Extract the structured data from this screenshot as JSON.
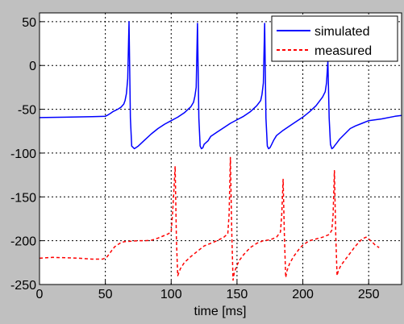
{
  "chart_data": {
    "type": "line",
    "title": "",
    "xlabel": "time [ms]",
    "ylabel": "",
    "xlim": [
      0,
      275
    ],
    "ylim": [
      -250,
      60
    ],
    "xticks": [
      0,
      50,
      100,
      150,
      200,
      250
    ],
    "yticks": [
      50,
      0,
      -50,
      -100,
      -150,
      -200,
      -250
    ],
    "grid": true,
    "legend_position": "top-right",
    "colors": {
      "figure_bg": "#c0c0c0",
      "axes_bg": "#ffffff",
      "grid": "#000000"
    },
    "series": [
      {
        "name": "simulated",
        "color": "#0000ff",
        "dash": "solid",
        "x": [
          0,
          20,
          40,
          50,
          52,
          54,
          56,
          58,
          60,
          62,
          64,
          65,
          66,
          67,
          68,
          69,
          70,
          72,
          75,
          80,
          85,
          90,
          95,
          100,
          105,
          110,
          115,
          117,
          118,
          119,
          120,
          121,
          122,
          123,
          124,
          125,
          128,
          130,
          135,
          140,
          145,
          150,
          155,
          160,
          165,
          168,
          169,
          170,
          171,
          172,
          173,
          174,
          175,
          176,
          178,
          180,
          185,
          190,
          195,
          200,
          205,
          210,
          215,
          217,
          218,
          219,
          220,
          221,
          222,
          223,
          224,
          226,
          228,
          232,
          236,
          240,
          245,
          250,
          260,
          270,
          275
        ],
        "y": [
          -59.5,
          -59,
          -58.5,
          -58,
          -56.5,
          -54.5,
          -52.5,
          -51,
          -49.5,
          -47.5,
          -44,
          -40,
          -32,
          -15,
          50,
          -60,
          -92,
          -95,
          -92,
          -85,
          -78,
          -72,
          -67,
          -63,
          -59,
          -54,
          -47,
          -42,
          -35,
          -25,
          48,
          -60,
          -92,
          -95,
          -94,
          -90,
          -86,
          -81,
          -76,
          -71,
          -66,
          -62,
          -58,
          -53,
          -46,
          -40,
          -33,
          -20,
          48,
          -60,
          -92,
          -95,
          -94,
          -91,
          -85,
          -80,
          -74,
          -69,
          -64,
          -59,
          -53,
          -46,
          -36,
          -30,
          -20,
          5,
          -60,
          -90,
          -95,
          -94,
          -92,
          -88,
          -84,
          -78,
          -72,
          -69,
          -66,
          -63,
          -61,
          -58,
          -57
        ]
      },
      {
        "name": "measured",
        "color": "#ff0000",
        "dash": "4,3",
        "x": [
          0,
          10,
          20,
          30,
          40,
          48,
          51,
          53,
          55,
          57,
          59,
          62,
          65,
          70,
          75,
          80,
          85,
          90,
          95,
          98,
          100,
          101,
          102,
          103,
          104,
          105,
          107,
          110,
          115,
          120,
          125,
          130,
          135,
          140,
          143,
          144,
          145,
          146,
          147,
          148,
          150,
          152,
          155,
          160,
          165,
          170,
          175,
          180,
          183,
          184,
          185,
          186,
          187,
          188,
          190,
          193,
          197,
          200,
          205,
          210,
          215,
          220,
          222,
          223,
          224,
          225,
          226,
          227,
          229,
          232,
          236,
          240,
          245,
          248,
          250,
          253,
          255,
          258
        ],
        "y": [
          -220,
          -219,
          -219.5,
          -220,
          -221,
          -221,
          -219,
          -215,
          -211,
          -207,
          -205,
          -202,
          -201,
          -200.5,
          -200,
          -200,
          -199.5,
          -197,
          -194,
          -192,
          -190,
          -170,
          -145,
          -115,
          -200,
          -240,
          -232,
          -225,
          -218,
          -212,
          -206,
          -203,
          -200,
          -196,
          -192,
          -170,
          -105,
          -190,
          -245,
          -236,
          -228,
          -222,
          -216,
          -208,
          -203,
          -200,
          -199,
          -196,
          -190,
          -170,
          -130,
          -195,
          -242,
          -234,
          -226,
          -218,
          -210,
          -205,
          -200,
          -198,
          -196,
          -193,
          -188,
          -170,
          -120,
          -195,
          -240,
          -234,
          -228,
          -222,
          -214,
          -206,
          -198,
          -196,
          -198,
          -202,
          -205,
          -208
        ]
      }
    ]
  }
}
